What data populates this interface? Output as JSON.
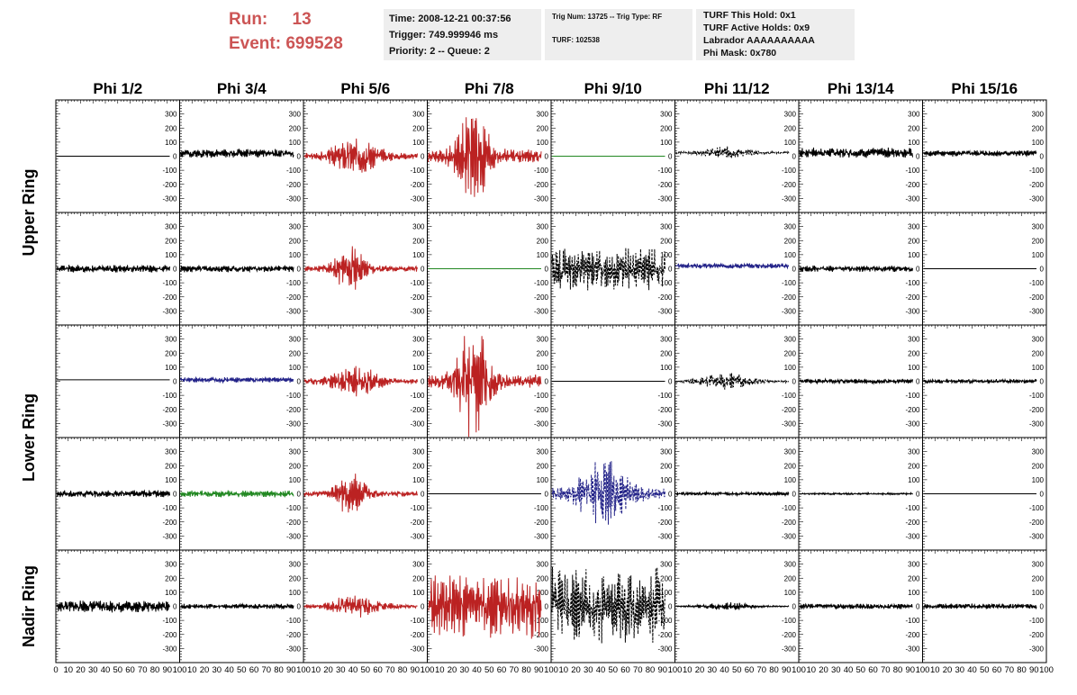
{
  "header": {
    "run_label": "Run:",
    "run_value": "13",
    "event_label": "Event:",
    "event_value": "699528"
  },
  "info_time": {
    "time": "Time: 2008-12-21 00:37:56",
    "trigger": "Trigger: 749.999946 ms",
    "priority": "Priority: 2 -- Queue: 2"
  },
  "info_trig": {
    "trig": "Trig Num: 13725 -- Trig Type: RF",
    "turf": "TURF: 102538"
  },
  "info_turf": {
    "hold": "TURF This Hold: 0x1",
    "active": "TURF Active Holds: 0x9",
    "labrador": "Labrador AAAAAAAAAA",
    "phimask": "Phi Mask: 0x780"
  },
  "chart_data": {
    "type": "line",
    "columns": [
      "Phi 1/2",
      "Phi 3/4",
      "Phi 5/6",
      "Phi 7/8",
      "Phi 9/10",
      "Phi 11/12",
      "Phi 13/14",
      "Phi 15/16"
    ],
    "row_titles": [
      {
        "label": "Upper Ring",
        "rows": [
          0,
          1
        ]
      },
      {
        "label": "Lower Ring",
        "rows": [
          2,
          3
        ]
      },
      {
        "label": "Nadir Ring",
        "rows": [
          4
        ]
      }
    ],
    "y_ticks": [
      "300",
      "200",
      "100",
      "0",
      "-100",
      "-200",
      "-300"
    ],
    "x_ticks": [
      "0",
      "10",
      "20",
      "30",
      "40",
      "50",
      "60",
      "70",
      "80",
      "90",
      "100"
    ],
    "ylim": [
      -400,
      400
    ],
    "xlim": [
      0,
      100
    ],
    "panels": [
      [
        {
          "color": "#000000",
          "amp": 0,
          "shape": "flat",
          "dashed": false,
          "offset": 0,
          "seed": 1
        },
        {
          "color": "#000000",
          "amp": 25,
          "shape": "uniform",
          "dashed": false,
          "offset": 20,
          "seed": 2
        },
        {
          "color": "#bb2222",
          "amp": 110,
          "shape": "bell",
          "dashed": false,
          "offset": 0,
          "seed": 3
        },
        {
          "color": "#bb2222",
          "amp": 320,
          "shape": "burst",
          "dashed": false,
          "offset": 0,
          "seed": 4
        },
        {
          "color": "#228822",
          "amp": 0,
          "shape": "flat",
          "dashed": false,
          "offset": 0,
          "seed": 5
        },
        {
          "color": "#000000",
          "amp": 35,
          "shape": "bell",
          "dashed": true,
          "offset": 25,
          "seed": 6
        },
        {
          "color": "#000000",
          "amp": 30,
          "shape": "uniform",
          "dashed": false,
          "offset": 25,
          "seed": 7
        },
        {
          "color": "#000000",
          "amp": 18,
          "shape": "uniform",
          "dashed": false,
          "offset": 20,
          "seed": 8
        }
      ],
      [
        {
          "color": "#000000",
          "amp": 22,
          "shape": "uniform",
          "dashed": false,
          "offset": 0,
          "seed": 9
        },
        {
          "color": "#000000",
          "amp": 20,
          "shape": "uniform",
          "dashed": false,
          "offset": 0,
          "seed": 10
        },
        {
          "color": "#bb2222",
          "amp": 140,
          "shape": "burst",
          "dashed": false,
          "offset": 0,
          "seed": 11
        },
        {
          "color": "#228822",
          "amp": 0,
          "shape": "flat",
          "dashed": false,
          "offset": 0,
          "seed": 12
        },
        {
          "color": "#000000",
          "amp": 120,
          "shape": "uniform",
          "dashed": true,
          "offset": 0,
          "seed": 13
        },
        {
          "color": "#222288",
          "amp": 15,
          "shape": "uniform",
          "dashed": false,
          "offset": 20,
          "seed": 14
        },
        {
          "color": "#000000",
          "amp": 18,
          "shape": "uniform",
          "dashed": false,
          "offset": 0,
          "seed": 15
        },
        {
          "color": "#000000",
          "amp": 0,
          "shape": "flat",
          "dashed": false,
          "offset": 0,
          "seed": 16
        }
      ],
      [
        {
          "color": "#000000",
          "amp": 0,
          "shape": "flat",
          "dashed": false,
          "offset": 10,
          "seed": 17
        },
        {
          "color": "#222288",
          "amp": 15,
          "shape": "uniform",
          "dashed": false,
          "offset": 10,
          "seed": 18
        },
        {
          "color": "#bb2222",
          "amp": 90,
          "shape": "bell",
          "dashed": false,
          "offset": 0,
          "seed": 19
        },
        {
          "color": "#bb2222",
          "amp": 330,
          "shape": "burst",
          "dashed": false,
          "offset": 0,
          "seed": 20
        },
        {
          "color": "#000000",
          "amp": 0,
          "shape": "flat",
          "dashed": false,
          "offset": 0,
          "seed": 21
        },
        {
          "color": "#000000",
          "amp": 50,
          "shape": "bell",
          "dashed": true,
          "offset": 0,
          "seed": 22
        },
        {
          "color": "#000000",
          "amp": 14,
          "shape": "uniform",
          "dashed": false,
          "offset": 0,
          "seed": 23
        },
        {
          "color": "#000000",
          "amp": 12,
          "shape": "uniform",
          "dashed": false,
          "offset": 0,
          "seed": 24
        }
      ],
      [
        {
          "color": "#000000",
          "amp": 20,
          "shape": "uniform",
          "dashed": false,
          "offset": 0,
          "seed": 25
        },
        {
          "color": "#228822",
          "amp": 20,
          "shape": "uniform",
          "dashed": false,
          "offset": 0,
          "seed": 26
        },
        {
          "color": "#bb2222",
          "amp": 130,
          "shape": "burst",
          "dashed": false,
          "offset": 0,
          "seed": 27
        },
        {
          "color": "#000000",
          "amp": 0,
          "shape": "flat",
          "dashed": false,
          "offset": 0,
          "seed": 28
        },
        {
          "color": "#222288",
          "amp": 200,
          "shape": "bell",
          "dashed": true,
          "offset": 0,
          "seed": 29
        },
        {
          "color": "#000000",
          "amp": 10,
          "shape": "uniform",
          "dashed": false,
          "offset": 0,
          "seed": 30
        },
        {
          "color": "#000000",
          "amp": 5,
          "shape": "uniform",
          "dashed": false,
          "offset": 0,
          "seed": 31
        },
        {
          "color": "#000000",
          "amp": 0,
          "shape": "flat",
          "dashed": false,
          "offset": 0,
          "seed": 32
        }
      ],
      [
        {
          "color": "#000000",
          "amp": 35,
          "shape": "uniform",
          "dashed": false,
          "offset": 0,
          "seed": 33
        },
        {
          "color": "#000000",
          "amp": 15,
          "shape": "uniform",
          "dashed": false,
          "offset": 0,
          "seed": 34
        },
        {
          "color": "#bb2222",
          "amp": 70,
          "shape": "bell",
          "dashed": false,
          "offset": 0,
          "seed": 35
        },
        {
          "color": "#bb2222",
          "amp": 180,
          "shape": "uniform",
          "dashed": false,
          "offset": 0,
          "seed": 36
        },
        {
          "color": "#000000",
          "amp": 220,
          "shape": "uniform",
          "dashed": true,
          "offset": 0,
          "seed": 37
        },
        {
          "color": "#000000",
          "amp": 25,
          "shape": "bell",
          "dashed": false,
          "offset": 0,
          "seed": 38
        },
        {
          "color": "#000000",
          "amp": 15,
          "shape": "uniform",
          "dashed": false,
          "offset": 0,
          "seed": 39
        },
        {
          "color": "#000000",
          "amp": 15,
          "shape": "uniform",
          "dashed": false,
          "offset": 0,
          "seed": 40
        }
      ]
    ]
  }
}
